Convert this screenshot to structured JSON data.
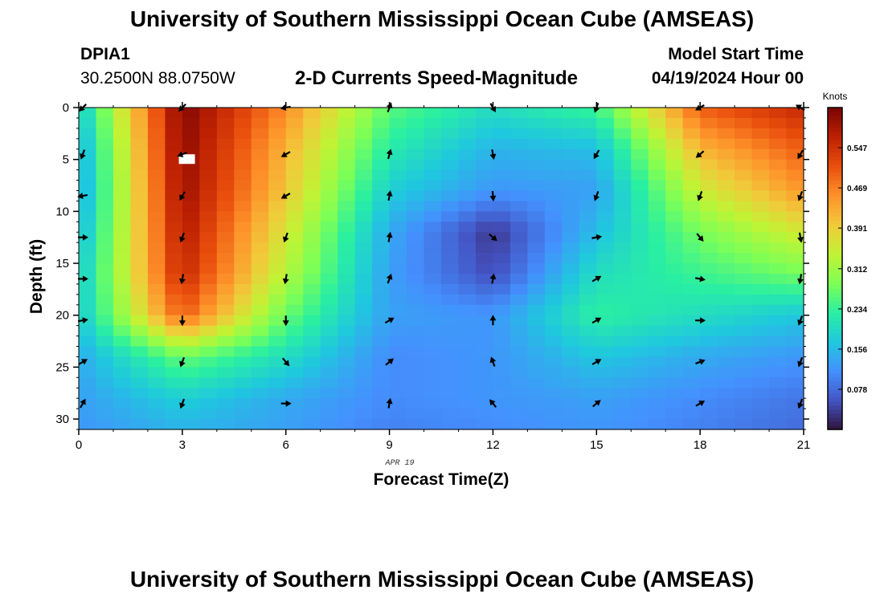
{
  "header": {
    "title": "University of Southern Mississippi Ocean Cube (AMSEAS)",
    "station_id": "DPIA1",
    "station_coords": "30.2500N  88.0750W",
    "chart_title": "2-D Currents Speed-Magnitude",
    "model_start_label": "Model Start Time",
    "model_start_value": "04/19/2024 Hour 00"
  },
  "footer": {
    "title": "University of Southern Mississippi Ocean Cube (AMSEAS)"
  },
  "chart_data": {
    "type": "heatmap",
    "title": "2-D Currents Speed-Magnitude",
    "xlabel": "Forecast Time(Z)",
    "ylabel": "Depth (ft)",
    "date_label": "APR 19",
    "xlim": [
      0,
      21
    ],
    "ylim": [
      0,
      31
    ],
    "x_ticks": [
      0,
      3,
      6,
      9,
      12,
      15,
      18,
      21
    ],
    "y_ticks": [
      0,
      5,
      10,
      15,
      20,
      25,
      30
    ],
    "colorbar": {
      "title": "Knots",
      "min": 0,
      "max": 0.625,
      "ticks": [
        "0.078",
        "0.156",
        "0.234",
        "0.312",
        "0.391",
        "0.469",
        "0.547"
      ],
      "colors": [
        "#30123b",
        "#4454c4",
        "#4490fe",
        "#1fc8de",
        "#29efa2",
        "#7dff56",
        "#c1f334",
        "#f1ca3a",
        "#fe922a",
        "#ea4f0d",
        "#be2102",
        "#7a0403"
      ]
    },
    "speed_field": {
      "description": "speed magnitude in knots, rows = depth (ft), columns = forecast hour",
      "depths": [
        0,
        4,
        8,
        12,
        16,
        20,
        24,
        28,
        31
      ],
      "hours": [
        0,
        3,
        6,
        9,
        12,
        15,
        18,
        21
      ],
      "values": [
        [
          0.17,
          0.62,
          0.46,
          0.26,
          0.2,
          0.24,
          0.5,
          0.56
        ],
        [
          0.14,
          0.61,
          0.42,
          0.22,
          0.15,
          0.16,
          0.42,
          0.5
        ],
        [
          0.13,
          0.6,
          0.4,
          0.18,
          0.12,
          0.13,
          0.35,
          0.45
        ],
        [
          0.15,
          0.58,
          0.36,
          0.14,
          0.03,
          0.16,
          0.28,
          0.36
        ],
        [
          0.17,
          0.56,
          0.33,
          0.13,
          0.05,
          0.2,
          0.24,
          0.28
        ],
        [
          0.17,
          0.5,
          0.27,
          0.13,
          0.12,
          0.23,
          0.2,
          0.17
        ],
        [
          0.14,
          0.27,
          0.2,
          0.11,
          0.12,
          0.17,
          0.14,
          0.12
        ],
        [
          0.13,
          0.18,
          0.14,
          0.11,
          0.12,
          0.13,
          0.11,
          0.09
        ],
        [
          0.12,
          0.15,
          0.13,
          0.1,
          0.11,
          0.12,
          0.1,
          0.08
        ]
      ]
    },
    "arrows": {
      "description": "current direction in degrees (0 = toward north/up, 90 = east)",
      "hours": [
        0,
        3,
        6,
        9,
        12,
        15,
        18,
        21
      ],
      "depths": [
        0,
        4.5,
        8.5,
        12.5,
        16.5,
        20.5,
        24.5,
        28.5
      ],
      "directions": [
        [
          225,
          225,
          260,
          20,
          150,
          200,
          240,
          300
        ],
        [
          200,
          250,
          240,
          15,
          170,
          210,
          230,
          210
        ],
        [
          260,
          210,
          240,
          10,
          175,
          200,
          200,
          200
        ],
        [
          90,
          200,
          200,
          10,
          130,
          80,
          140,
          170
        ],
        [
          90,
          190,
          190,
          20,
          10,
          60,
          100,
          190
        ],
        [
          80,
          180,
          180,
          60,
          0,
          60,
          90,
          200
        ],
        [
          60,
          200,
          140,
          50,
          340,
          60,
          70,
          200
        ],
        [
          30,
          200,
          90,
          10,
          320,
          50,
          60,
          200
        ]
      ]
    },
    "annotation": "white mask block near 3h, 5ft"
  }
}
